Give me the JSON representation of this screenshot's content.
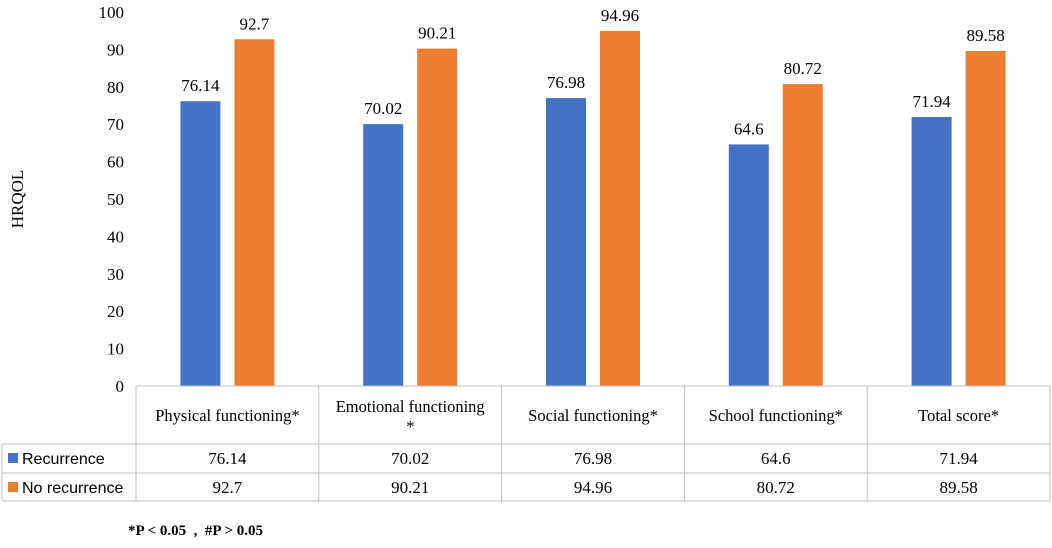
{
  "chart_data": {
    "type": "bar",
    "ylabel": "HRQOL",
    "ylim": [
      0,
      100
    ],
    "ytick_step": 10,
    "categories": [
      [
        "Physical functioning*"
      ],
      [
        "Emotional functioning",
        "*"
      ],
      [
        "Social functioning*"
      ],
      [
        "School functioning*"
      ],
      [
        "Total score*"
      ]
    ],
    "series": [
      {
        "name": "Recurrence",
        "color": "#4472C4",
        "values": [
          76.14,
          70.02,
          76.98,
          64.6,
          71.94
        ]
      },
      {
        "name": "No recurrence",
        "color": "#ED7D31",
        "values": [
          92.7,
          90.21,
          94.96,
          80.72,
          89.58
        ]
      }
    ],
    "data_table": true,
    "footnote": "*P < 0.05  ,  #P > 0.05"
  }
}
